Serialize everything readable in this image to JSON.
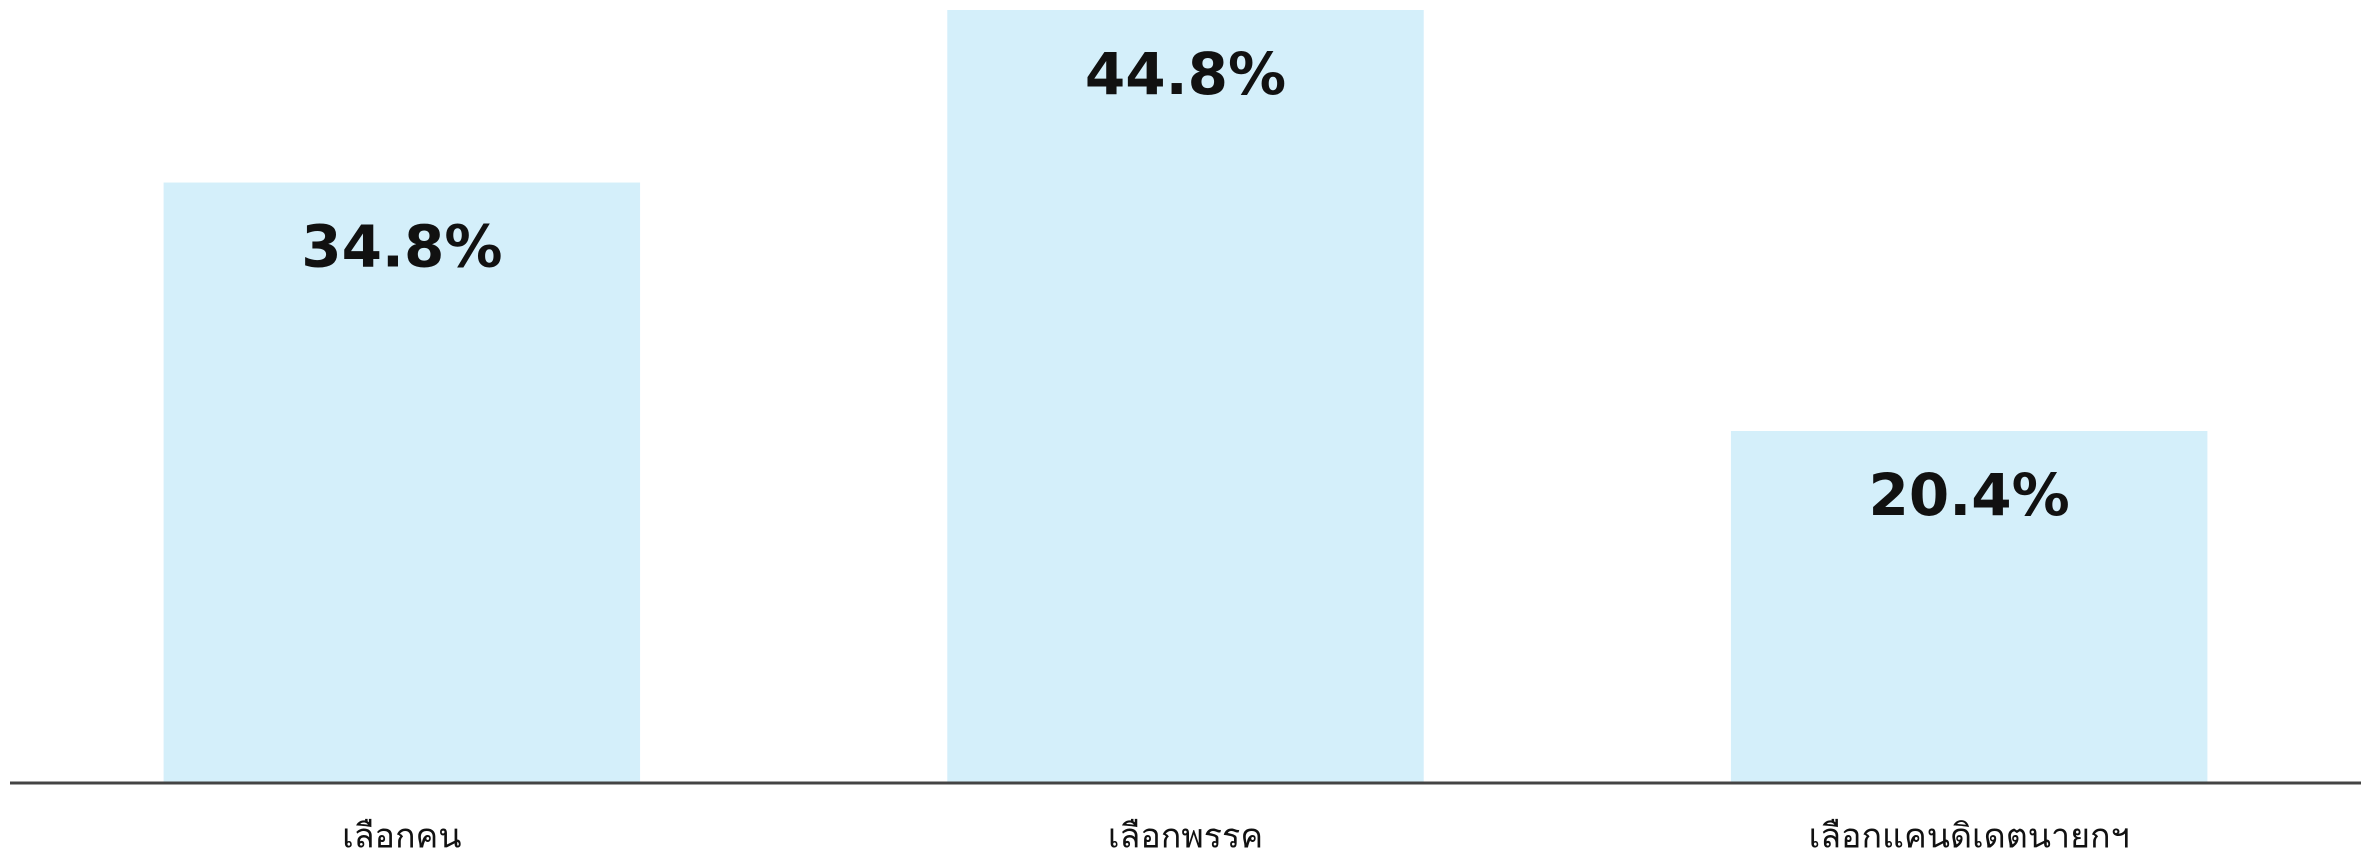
{
  "chart_data": {
    "type": "bar",
    "categories": [
      "เลือกคน",
      "เลือกพรรค",
      "เลือกแคนดิเดตนายกฯ"
    ],
    "values": [
      34.8,
      44.8,
      20.4
    ],
    "value_labels": [
      "34.8%",
      "44.8%",
      "20.4%"
    ],
    "color": "#d4effa"
  }
}
